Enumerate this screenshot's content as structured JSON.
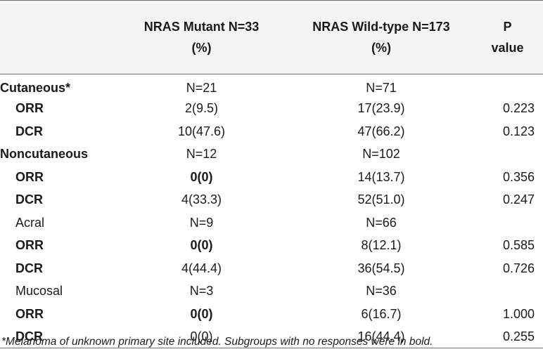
{
  "header": {
    "col1": "",
    "col2_line1": "NRAS Mutant N=33",
    "col2_line2": "(%)",
    "col3_line1": "NRAS Wild-type N=173",
    "col3_line2": "(%)",
    "col4_line1": "P",
    "col4_line2": "value"
  },
  "rows": [
    {
      "label": "Cutaneous*",
      "mutant": "N=21",
      "wildtype": "N=71",
      "p": ""
    },
    {
      "label": "ORR",
      "mutant": "2(9.5)",
      "wildtype": "17(23.9)",
      "p": "0.223"
    },
    {
      "label": "DCR",
      "mutant": "10(47.6)",
      "wildtype": "47(66.2)",
      "p": "0.123"
    },
    {
      "label": "Noncutaneous",
      "mutant": "N=12",
      "wildtype": "N=102",
      "p": ""
    },
    {
      "label": "ORR",
      "mutant": "0(0)",
      "wildtype": "14(13.7)",
      "p": "0.356"
    },
    {
      "label": "DCR",
      "mutant": "4(33.3)",
      "wildtype": "52(51.0)",
      "p": "0.247"
    },
    {
      "label": "Acral",
      "mutant": "N=9",
      "wildtype": "N=66",
      "p": ""
    },
    {
      "label": "ORR",
      "mutant": "0(0)",
      "wildtype": "8(12.1)",
      "p": "0.585"
    },
    {
      "label": "DCR",
      "mutant": "4(44.4)",
      "wildtype": "36(54.5)",
      "p": "0.726"
    },
    {
      "label": "Mucosal",
      "mutant": "N=3",
      "wildtype": "N=36",
      "p": ""
    },
    {
      "label": "ORR",
      "mutant": "0(0)",
      "wildtype": "6(16.7)",
      "p": "1.000"
    },
    {
      "label": "DCR",
      "mutant": "0(0)",
      "wildtype": "16(44.4)",
      "p": "0.255"
    }
  ],
  "footnote": "*Melanoma of unknown primary site included. Subgroups with no responses were in bold."
}
